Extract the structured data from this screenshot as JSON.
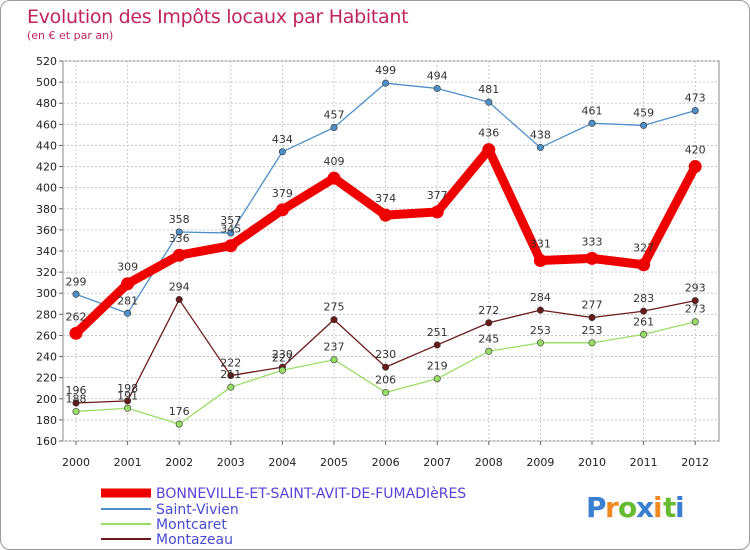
{
  "chart_data": {
    "type": "line",
    "title": "Evolution des Impôts locaux par Habitant",
    "subtitle": "(en € et par an)",
    "x": [
      "2000",
      "2001",
      "2002",
      "2003",
      "2004",
      "2005",
      "2006",
      "2007",
      "2008",
      "2009",
      "2010",
      "2011",
      "2012"
    ],
    "ylim": [
      160,
      520
    ],
    "yticks": [
      160,
      180,
      200,
      220,
      240,
      260,
      280,
      300,
      320,
      340,
      360,
      380,
      400,
      420,
      440,
      460,
      480,
      500,
      520
    ],
    "grid": true,
    "legend_position": "bottom-left",
    "series": [
      {
        "name": "BONNEVILLE-ET-SAINT-AVIT-DE-FUMADIèRES",
        "color": "#ee0000",
        "values": [
          262,
          309,
          336,
          345,
          379,
          409,
          374,
          377,
          436,
          331,
          333,
          327,
          420
        ]
      },
      {
        "name": "Saint-Vivien",
        "color": "#4f8fc8",
        "values": [
          299,
          281,
          358,
          357,
          434,
          457,
          499,
          494,
          481,
          438,
          461,
          459,
          473
        ]
      },
      {
        "name": "Montcaret",
        "color": "#99dd66",
        "values": [
          188,
          191,
          176,
          211,
          227,
          237,
          206,
          219,
          245,
          253,
          253,
          261,
          273
        ]
      },
      {
        "name": "Montazeau",
        "color": "#6b1a1a",
        "values": [
          196,
          198,
          294,
          222,
          230,
          275,
          230,
          251,
          272,
          284,
          277,
          283,
          293
        ]
      }
    ],
    "data_labels": [
      [
        "262",
        "309",
        "336",
        "345",
        "379",
        "409",
        "374",
        "377",
        "436",
        "331",
        "333",
        "327",
        "420"
      ],
      [
        "299",
        "281",
        "358",
        "357",
        "434",
        "457",
        "499",
        "494",
        "481",
        "438",
        "461",
        "459",
        "473"
      ],
      [
        "188",
        "191",
        "176",
        "211",
        "227",
        "237",
        "206",
        "219",
        "245",
        "253",
        "253",
        "261",
        "273"
      ],
      [
        "196",
        "198",
        "294",
        "222",
        "230",
        "275",
        "230",
        "251",
        "272",
        "284",
        "277",
        "283",
        "293"
      ]
    ]
  },
  "brand": {
    "letters": [
      "P",
      "r",
      "o",
      "x",
      "i",
      "t",
      "i"
    ],
    "colors": [
      "#3a7fd0",
      "#f08a24",
      "#66bb33",
      "#3a7fd0",
      "#f08a24",
      "#66bb33",
      "#3a7fd0"
    ]
  }
}
